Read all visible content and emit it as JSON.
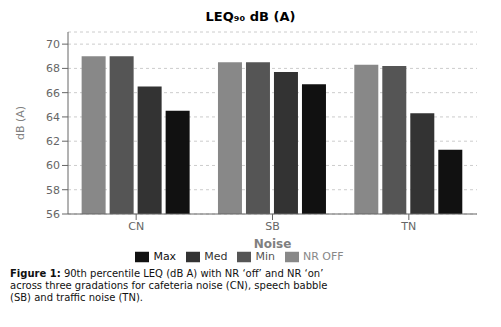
{
  "chart_data": {
    "type": "bar",
    "title": "LEQ₉₀ dB (A)",
    "x_label": "Noise",
    "y_label": "dB (A)",
    "categories": [
      "CN",
      "SB",
      "TN"
    ],
    "series": [
      {
        "name": "NR OFF",
        "color": "#888888",
        "values": [
          69.0,
          68.5,
          68.3
        ]
      },
      {
        "name": "Min",
        "color": "#555555",
        "values": [
          69.0,
          68.5,
          68.2
        ]
      },
      {
        "name": "Med",
        "color": "#333333",
        "values": [
          66.5,
          67.7,
          64.3
        ]
      },
      {
        "name": "Max",
        "color": "#111111",
        "values": [
          64.5,
          66.7,
          61.3
        ]
      }
    ],
    "ylim": [
      56,
      71
    ],
    "yticks": [
      56,
      58,
      60,
      62,
      64,
      66,
      68,
      70
    ],
    "grid": true,
    "legend": "bottom",
    "caption": "Figure 1: 90th percentile LEQ (dB A) with NR ‘off’ and NR ‘on’\nacross three gradations for cafeteria noise (CN), speech babble\n(SB) and traffic noise (TN)."
  }
}
